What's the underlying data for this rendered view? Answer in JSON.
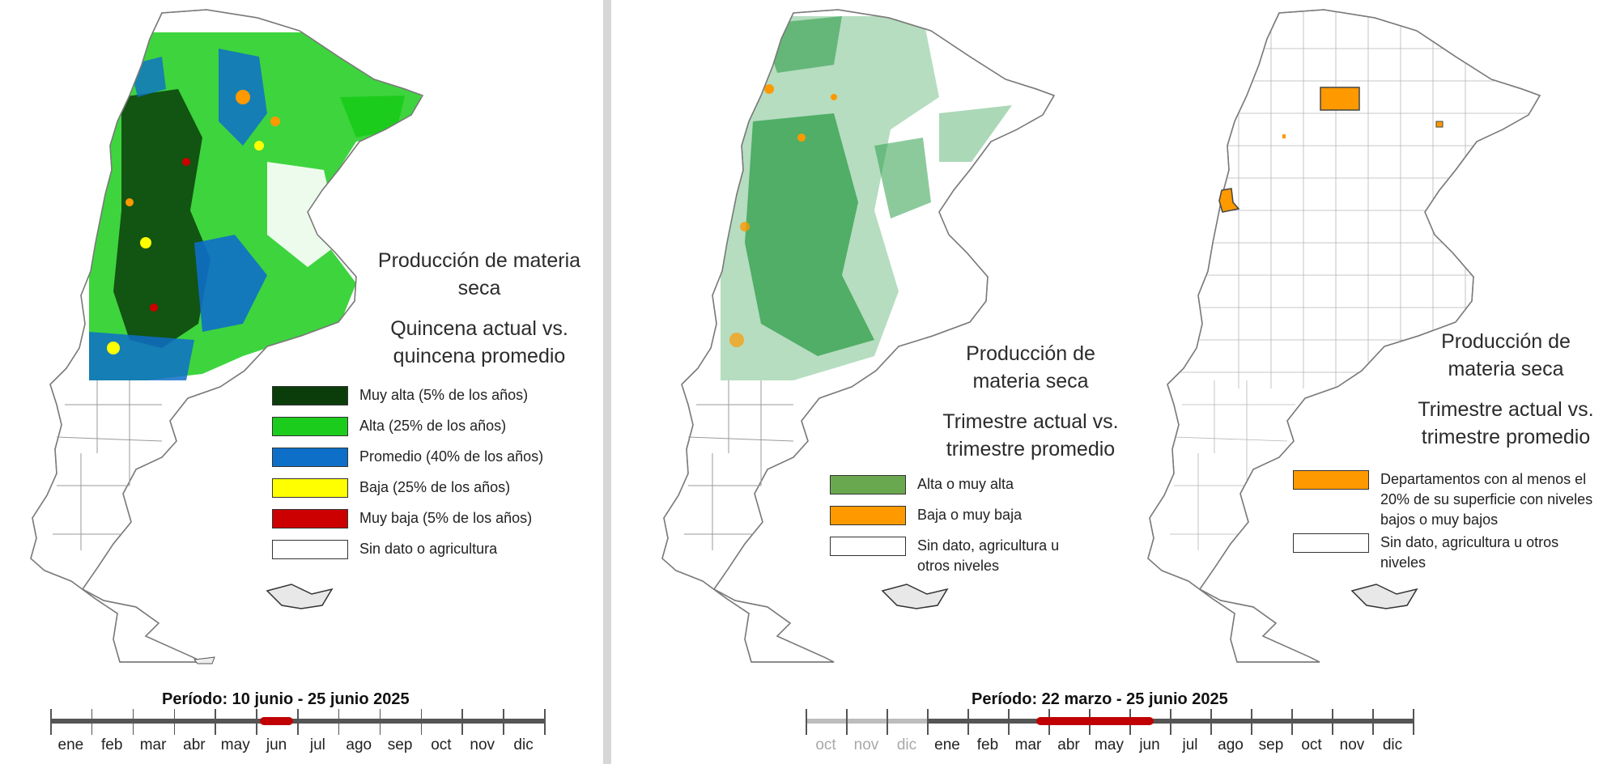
{
  "panel_quincena": {
    "title_line1": "Producción de materia",
    "title_line2": "seca",
    "subtitle_line1": "Quincena actual vs.",
    "subtitle_line2": "quincena  promedio",
    "legend": [
      {
        "label": "Muy alta (5% de los años)",
        "color": "#0b3d0b"
      },
      {
        "label": "Alta (25% de los años)",
        "color": "#1ccc1c"
      },
      {
        "label": "Promedio (40% de los años)",
        "color": "#0e6fc9"
      },
      {
        "label": "Baja (25% de los años)",
        "color": "#ffff00"
      },
      {
        "label": "Muy baja (5% de los años)",
        "color": "#cc0000"
      },
      {
        "label": "Sin dato o agricultura",
        "color": "#ffffff"
      }
    ],
    "period_label": "Período:  10 junio  - 25 junio 2025",
    "timeline_months": [
      "ene",
      "feb",
      "mar",
      "abr",
      "may",
      "jun",
      "jul",
      "ago",
      "sep",
      "oct",
      "nov",
      "dic"
    ],
    "highlight_range": [
      5.1,
      5.9
    ]
  },
  "panel_trimestre": {
    "title_line1": "Producción de",
    "title_line2": "materia seca",
    "subtitle_line1": "Trimestre actual vs.",
    "subtitle_line2": "trimestre promedio",
    "legend": [
      {
        "label": "Alta o muy alta",
        "color": "#6aa84f"
      },
      {
        "label": "Baja o muy baja",
        "color": "#ff9900"
      },
      {
        "label": "Sin dato, agricultura u otros niveles",
        "color": "#ffffff"
      }
    ]
  },
  "panel_departamentos": {
    "title_line1": "Producción de",
    "title_line2": "materia seca",
    "subtitle_line1": "Trimestre actual vs.",
    "subtitle_line2": "trimestre promedio",
    "legend": [
      {
        "label": "Departamentos con al menos el 20% de su superficie con niveles bajos o muy bajos",
        "color": "#ff9900"
      },
      {
        "label": "Sin dato, agricultura u otros niveles",
        "color": "#ffffff"
      }
    ]
  },
  "period_trimestre": {
    "period_label": "Período:  22 marzo - 25 junio 2025",
    "timeline_months": [
      "oct",
      "nov",
      "dic",
      "ene",
      "feb",
      "mar",
      "abr",
      "may",
      "jun",
      "jul",
      "ago",
      "sep",
      "oct",
      "nov",
      "dic"
    ],
    "previous_year_months": 3,
    "highlight_range": [
      5.7,
      8.6
    ]
  },
  "colors": {
    "muy_alta": "#0b3d0b",
    "alta": "#1ccc1c",
    "promedio": "#0e6fc9",
    "baja": "#ffff00",
    "muy_baja": "#cc0000",
    "trim_alta": "#2e9e4a",
    "trim_baja": "#ff9900",
    "highlight": "#c00000"
  }
}
